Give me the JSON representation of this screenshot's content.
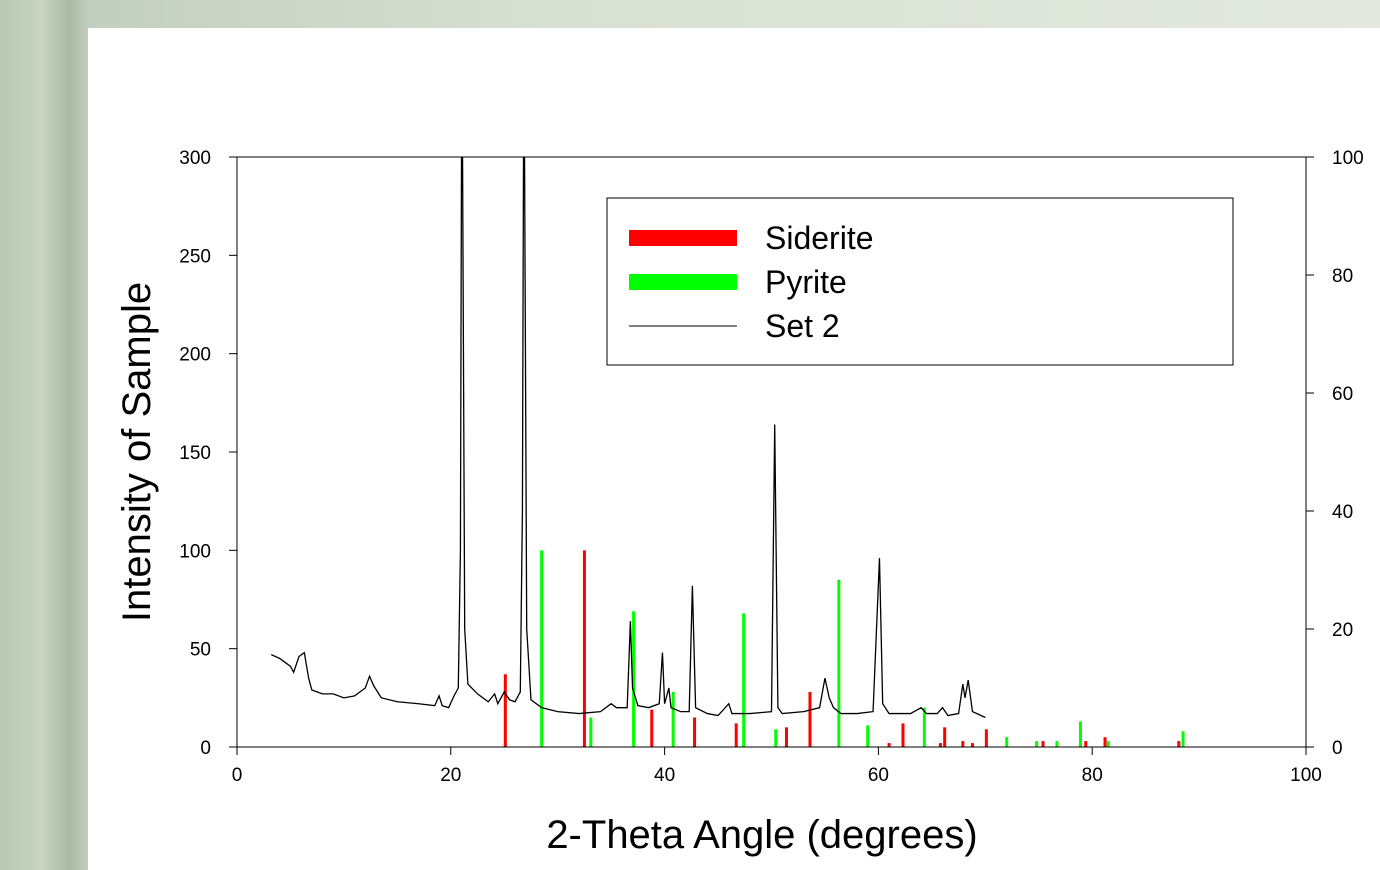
{
  "chart_data": {
    "type": "line",
    "x_label": "2-Theta Angle (degrees)",
    "y_label": "Intensity of Sample",
    "xlim": [
      0,
      100
    ],
    "xticks": [
      0,
      20,
      40,
      60,
      80,
      100
    ],
    "ylim": [
      0,
      300
    ],
    "yticks": [
      0,
      50,
      100,
      150,
      200,
      250,
      300
    ],
    "y2lim": [
      0,
      100
    ],
    "y2ticks": [
      0,
      20,
      40,
      60,
      80,
      100
    ],
    "legend": "upper-right",
    "series": [
      {
        "name": "Siderite",
        "color": "#ff0000",
        "type": "bar",
        "x": [
          25.1,
          32.5,
          38.8,
          42.8,
          46.7,
          51.4,
          53.6,
          61.0,
          62.3,
          65.8,
          66.2,
          67.9,
          68.8,
          70.1,
          75.4,
          79.4,
          81.2,
          88.1
        ],
        "values": [
          37,
          100,
          19,
          15,
          12,
          10,
          28,
          2,
          12,
          2,
          10,
          3,
          2,
          9,
          3,
          3,
          5,
          3
        ]
      },
      {
        "name": "Pyrite",
        "color": "#00ff00",
        "type": "bar",
        "x": [
          28.5,
          33.1,
          37.1,
          40.8,
          47.4,
          50.4,
          56.3,
          59.0,
          64.3,
          72.0,
          74.8,
          76.7,
          78.9,
          81.5,
          88.5
        ],
        "values": [
          100,
          15,
          69,
          28,
          68,
          9,
          85,
          11,
          20,
          5,
          3,
          3,
          13,
          3,
          8
        ]
      },
      {
        "name": "Set 2",
        "color": "#000000",
        "type": "line",
        "x": [
          3.2,
          4,
          5,
          5.3,
          5.8,
          6.3,
          6.7,
          7,
          8,
          9,
          10,
          11,
          12,
          12.4,
          12.8,
          13.5,
          15,
          17,
          18.5,
          18.9,
          19.2,
          19.8,
          20.3,
          20.7,
          20.9,
          21.0,
          21.1,
          21.3,
          21.6,
          22.5,
          23.5,
          24.1,
          24.4,
          25,
          25.5,
          26,
          26.5,
          26.7,
          26.8,
          26.9,
          27.1,
          27.5,
          28.5,
          30,
          32,
          34,
          35,
          35.5,
          36.5,
          36.8,
          37.0,
          37.5,
          38.5,
          39.5,
          39.8,
          40.0,
          40.4,
          40.6,
          41.5,
          42.3,
          42.6,
          42.9,
          44,
          45,
          46,
          46.3,
          48,
          50,
          50.3,
          50.6,
          51,
          53,
          54.5,
          55,
          55.4,
          55.8,
          56.5,
          58,
          59.5,
          60.1,
          60.4,
          61,
          63,
          64,
          64.5,
          65.5,
          66,
          66.5,
          67.5,
          67.9,
          68.1,
          68.4,
          68.8,
          70
        ],
        "values": [
          47,
          45,
          41,
          38,
          46,
          48,
          35,
          29,
          27,
          27,
          25,
          26,
          30,
          36,
          31,
          25,
          23,
          22,
          21,
          26,
          21,
          20,
          26,
          30,
          100,
          300,
          300,
          60,
          32,
          27,
          23,
          27,
          22,
          28,
          24,
          23,
          28,
          120,
          300,
          300,
          60,
          24,
          20,
          18,
          17,
          18,
          22,
          20,
          20,
          64,
          30,
          21,
          20,
          22,
          48,
          22,
          30,
          20,
          18,
          18,
          82,
          20,
          17,
          16,
          22,
          17,
          17,
          18,
          164,
          20,
          17,
          18,
          20,
          35,
          25,
          20,
          17,
          17,
          18,
          96,
          22,
          17,
          17,
          20,
          17,
          17,
          20,
          16,
          17,
          32,
          25,
          34,
          18,
          15
        ]
      }
    ]
  }
}
